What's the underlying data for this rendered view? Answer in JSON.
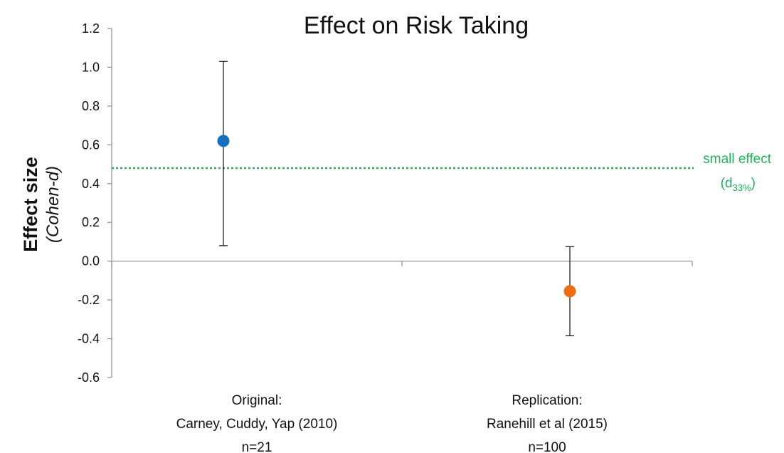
{
  "chart_data": {
    "type": "scatter",
    "title": "Effect on Risk Taking",
    "ylabel": "Effect size",
    "ylabel_sub": "(Cohen-d)",
    "ylim": [
      -0.6,
      1.2
    ],
    "yticks": [
      "-0.6",
      "-0.4",
      "-0.2",
      "0.0",
      "0.2",
      "0.4",
      "0.6",
      "0.8",
      "1.0",
      "1.2"
    ],
    "grid": false,
    "categories": [
      [
        "Original:",
        "Carney, Cuddy, Yap (2010)",
        "n=21"
      ],
      [
        "Replication:",
        "Ranehill et al (2015)",
        "n=100"
      ]
    ],
    "points": [
      {
        "value": 0.62,
        "err_low": 0.08,
        "err_high": 1.03,
        "color": "#1670c0"
      },
      {
        "value": -0.155,
        "err_low": -0.385,
        "err_high": 0.075,
        "color": "#ee6d12"
      }
    ],
    "reference_line": {
      "value": 0.48,
      "color": "#1fb25a",
      "label": "small effect",
      "label2_base": "(d",
      "label2_sub": "33%",
      "label2_end": ")"
    }
  }
}
